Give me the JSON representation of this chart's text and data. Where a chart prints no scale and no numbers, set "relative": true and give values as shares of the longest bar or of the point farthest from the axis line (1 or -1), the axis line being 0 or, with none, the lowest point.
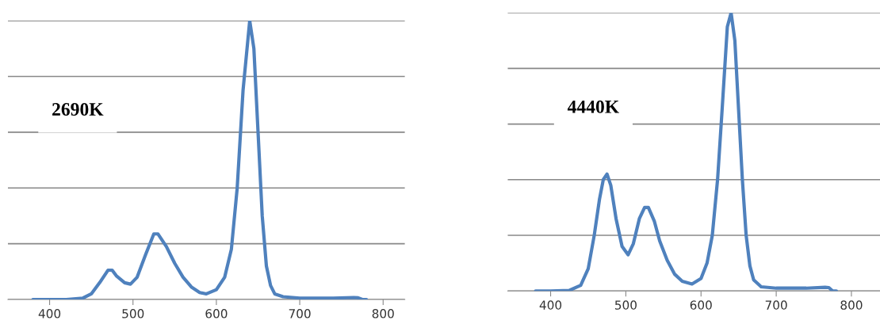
{
  "chart_data": [
    {
      "type": "line",
      "relative": true,
      "annotations": [
        "2690K"
      ],
      "xlim": [
        350,
        826
      ],
      "xticks": [
        400,
        500,
        600,
        700,
        800
      ],
      "grid": "y",
      "marker": "none",
      "line_style": "solid",
      "series": [
        {
          "color": "#4f81bd",
          "x": [
            380,
            400,
            420,
            440,
            450,
            460,
            470,
            475,
            480,
            490,
            497,
            505,
            515,
            525,
            530,
            540,
            550,
            560,
            570,
            580,
            588,
            600,
            610,
            618,
            625,
            632,
            640,
            645,
            650,
            655,
            660,
            665,
            670,
            680,
            700,
            740,
            765,
            770,
            775,
            780
          ],
          "values": [
            0,
            0,
            0,
            0.005,
            0.02,
            0.06,
            0.105,
            0.105,
            0.085,
            0.06,
            0.055,
            0.08,
            0.16,
            0.235,
            0.235,
            0.19,
            0.13,
            0.08,
            0.045,
            0.025,
            0.02,
            0.035,
            0.08,
            0.18,
            0.4,
            0.75,
            1.0,
            0.9,
            0.6,
            0.3,
            0.12,
            0.05,
            0.02,
            0.01,
            0.005,
            0.005,
            0.007,
            0.006,
            0,
            0
          ]
        }
      ]
    },
    {
      "type": "line",
      "relative": true,
      "annotations": [
        "4440K"
      ],
      "xlim": [
        343,
        838
      ],
      "xticks": [
        400,
        500,
        600,
        700,
        800
      ],
      "grid": "y",
      "marker": "none",
      "line_style": "solid",
      "series": [
        {
          "color": "#4f81bd",
          "x": [
            380,
            400,
            425,
            440,
            450,
            458,
            465,
            470,
            475,
            480,
            487,
            495,
            503,
            510,
            518,
            525,
            530,
            538,
            545,
            555,
            565,
            575,
            588,
            600,
            608,
            615,
            622,
            628,
            635,
            640,
            645,
            650,
            655,
            660,
            665,
            670,
            680,
            700,
            740,
            765,
            770,
            775,
            780
          ],
          "values": [
            0,
            0,
            0.002,
            0.02,
            0.08,
            0.2,
            0.33,
            0.4,
            0.42,
            0.38,
            0.26,
            0.16,
            0.13,
            0.17,
            0.26,
            0.3,
            0.3,
            0.25,
            0.18,
            0.11,
            0.06,
            0.035,
            0.025,
            0.045,
            0.1,
            0.2,
            0.4,
            0.65,
            0.95,
            1.0,
            0.9,
            0.65,
            0.4,
            0.2,
            0.09,
            0.04,
            0.015,
            0.01,
            0.01,
            0.013,
            0.012,
            0,
            0
          ]
        }
      ]
    }
  ]
}
